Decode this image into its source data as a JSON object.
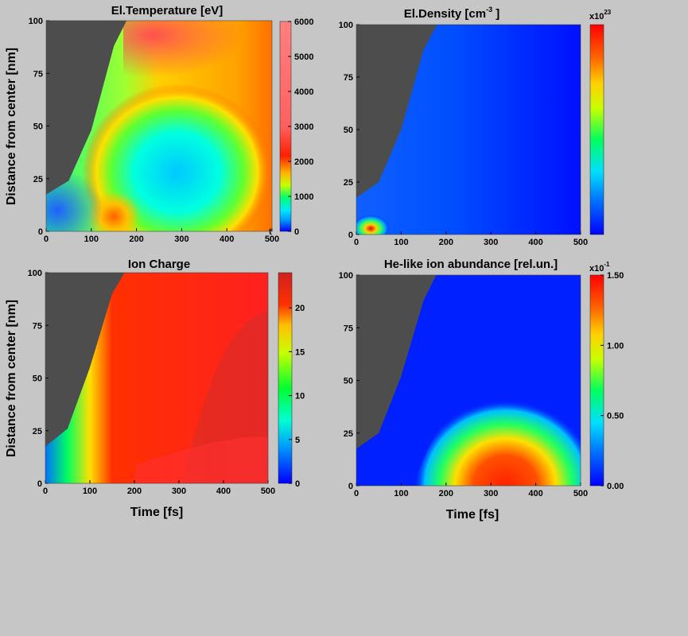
{
  "chart_data": [
    {
      "type": "heatmap",
      "title": "El.Temperature [eV]",
      "ylabel": "Distance from center [nm]",
      "xlabel": "",
      "xlim": [
        0,
        500
      ],
      "ylim": [
        0,
        100
      ],
      "xticks": [
        "0",
        "100",
        "200",
        "300",
        "400",
        "500"
      ],
      "yticks": [
        "0",
        "25",
        "50",
        "75",
        "100"
      ],
      "colorbar": {
        "range": [
          0,
          6000
        ],
        "ticks": [
          "0",
          "1000",
          "2000",
          "3000",
          "4000",
          "5000",
          "6000"
        ],
        "exponent_label": ""
      },
      "extra_label": "t",
      "boundary": [
        [
          0,
          17.5
        ],
        [
          50,
          24
        ],
        [
          100,
          48
        ],
        [
          150,
          88
        ],
        [
          178,
          100
        ]
      ],
      "palette": "jet"
    },
    {
      "type": "heatmap",
      "title": "El.Density [cm",
      "title_sup": "-3",
      "title_end": " ]",
      "ylabel": "",
      "xlabel": "",
      "xlim": [
        0,
        500
      ],
      "ylim": [
        0,
        100
      ],
      "xticks": [
        "0",
        "100",
        "200",
        "300",
        "400",
        "500"
      ],
      "yticks": [
        "0",
        "25",
        "50",
        "75",
        "100"
      ],
      "colorbar": {
        "range": [
          0,
          1
        ],
        "ticks": [],
        "exponent_base": "x10",
        "exponent_power": "23"
      },
      "boundary": [
        [
          0,
          17.5
        ],
        [
          50,
          25
        ],
        [
          100,
          50
        ],
        [
          150,
          88
        ],
        [
          180,
          100
        ]
      ],
      "palette": "jet"
    },
    {
      "type": "heatmap",
      "title": "Ion Charge",
      "ylabel": "Distance from center [nm]",
      "xlabel": "Time  [fs]",
      "xlim": [
        0,
        500
      ],
      "ylim": [
        0,
        100
      ],
      "xticks": [
        "0",
        "100",
        "200",
        "300",
        "400",
        "500"
      ],
      "yticks": [
        "0",
        "25",
        "50",
        "75",
        "100"
      ],
      "colorbar": {
        "range": [
          0,
          24
        ],
        "ticks": [
          "0",
          "5",
          "10",
          "15",
          "20"
        ],
        "exponent_label": ""
      },
      "boundary": [
        [
          0,
          17.5
        ],
        [
          50,
          26
        ],
        [
          100,
          55
        ],
        [
          150,
          90
        ],
        [
          178,
          100
        ]
      ],
      "palette": "jet"
    },
    {
      "type": "heatmap",
      "title": "He-like ion abundance [rel.un.]",
      "ylabel": "",
      "xlabel": "Time  [fs]",
      "xlim": [
        0,
        500
      ],
      "ylim": [
        0,
        100
      ],
      "xticks": [
        "0",
        "100",
        "200",
        "300",
        "400",
        "500"
      ],
      "yticks": [
        "0",
        "25",
        "50",
        "75",
        "100"
      ],
      "colorbar": {
        "range": [
          0,
          1.5
        ],
        "ticks": [
          "0.00",
          "0.50",
          "1.00",
          "1.50"
        ],
        "exponent_base": "x10",
        "exponent_power": "-1"
      },
      "boundary": [
        [
          0,
          17.5
        ],
        [
          50,
          25
        ],
        [
          100,
          52
        ],
        [
          150,
          88
        ],
        [
          178,
          100
        ]
      ],
      "palette": "jet"
    }
  ]
}
